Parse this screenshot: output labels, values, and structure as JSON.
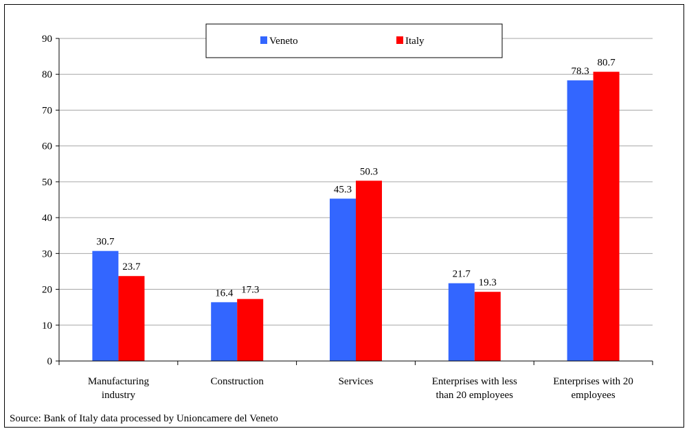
{
  "chart_data": {
    "type": "bar",
    "categories": [
      [
        "Manufacturing",
        "industry"
      ],
      [
        "Construction"
      ],
      [
        "Services"
      ],
      [
        "Enterprises with less",
        "than 20 employees"
      ],
      [
        "Enterprises with 20",
        "employees"
      ]
    ],
    "series": [
      {
        "name": "Veneto",
        "color": "#3366ff",
        "values": [
          30.7,
          16.4,
          45.3,
          21.7,
          78.3
        ],
        "labels": [
          "30.7",
          "16.4",
          "45.3",
          "21.7",
          "78.3"
        ]
      },
      {
        "name": "Italy",
        "color": "#ff0000",
        "values": [
          23.7,
          17.3,
          50.3,
          19.3,
          80.7
        ],
        "labels": [
          "23.7",
          "17.3",
          "50.3",
          "19.3",
          "80.7"
        ]
      }
    ],
    "ylim": [
      0,
      90
    ],
    "yticks": [
      0,
      10,
      20,
      30,
      40,
      50,
      60,
      70,
      80,
      90
    ],
    "grid": true,
    "legend_position": "top-center",
    "source": "Source: Bank of Italy data processed by Unioncamere del Veneto"
  }
}
